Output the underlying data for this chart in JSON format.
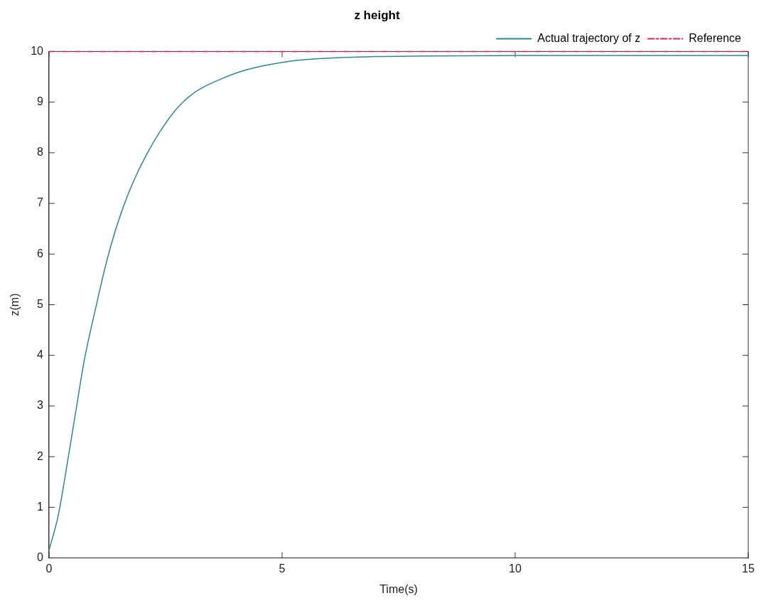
{
  "chart_data": {
    "type": "line",
    "title": "z height",
    "xlabel": "Time(s)",
    "ylabel": "z(m)",
    "xlim": [
      0,
      15
    ],
    "xticks": [
      0,
      5,
      10,
      15
    ],
    "ylim": [
      0,
      10
    ],
    "yticks": [
      0,
      1,
      2,
      3,
      4,
      5,
      6,
      7,
      8,
      9,
      10
    ],
    "grid": false,
    "legend": "top right",
    "marker": "none",
    "series": [
      {
        "name": "Actual trajectory of z",
        "color": "#2a8a92",
        "line_style": "solid",
        "x": [
          0,
          0.2,
          0.39,
          0.57,
          0.76,
          0.99,
          1.26,
          1.6,
          2.09,
          2.84,
          3.83,
          5.11,
          6,
          7,
          8,
          10,
          12,
          15
        ],
        "values": [
          0.15,
          0.85,
          1.86,
          2.87,
          3.92,
          4.89,
          5.94,
          6.95,
          7.96,
          8.97,
          9.51,
          9.8,
          9.87,
          9.9,
          9.91,
          9.92,
          9.92,
          9.92
        ]
      },
      {
        "name": "Reference",
        "color": "#e0205a",
        "line_style": "dashed",
        "x": [
          0,
          15
        ],
        "values": [
          10,
          10
        ]
      }
    ]
  }
}
